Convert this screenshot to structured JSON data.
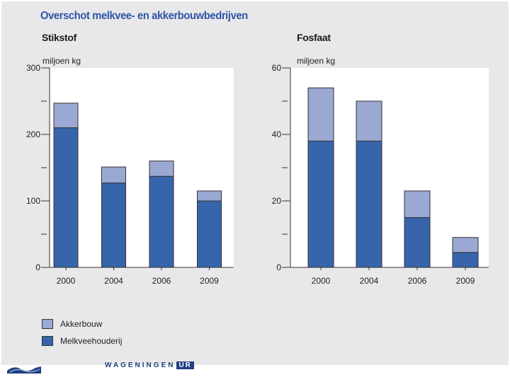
{
  "title": "Overschot melkvee- en akkerbouwbedrijven",
  "colors": {
    "akkerbouw": "#9aa8d3",
    "melkveehouderij": "#3765ab",
    "axis": "#333333",
    "plot_bg": "#ffffff",
    "title": "#2e56a6"
  },
  "legend": [
    {
      "key": "akkerbouw",
      "label": "Akkerbouw"
    },
    {
      "key": "melkveehouderij",
      "label": "Melkveehouderij"
    }
  ],
  "footer": {
    "wordmark": "WAGENINGEN",
    "wordmark_suffix": "UR",
    "logo_icon": "wageningen-logo-icon"
  },
  "chart_data": [
    {
      "type": "bar",
      "stacked": true,
      "title": "Stikstof",
      "ylabel": "miljoen kg",
      "xlabel": "",
      "categories": [
        "2000",
        "2004",
        "2006",
        "2009"
      ],
      "ylim": [
        0,
        300
      ],
      "y_labeled_ticks": [
        0,
        100,
        200,
        300
      ],
      "y_minor_ticks": [
        50,
        150,
        250
      ],
      "series": [
        {
          "name": "Melkveehouderij",
          "key": "melkveehouderij",
          "values": [
            210,
            127,
            137,
            100
          ]
        },
        {
          "name": "Akkerbouw",
          "key": "akkerbouw",
          "values": [
            37,
            24,
            23,
            15
          ]
        }
      ]
    },
    {
      "type": "bar",
      "stacked": true,
      "title": "Fosfaat",
      "ylabel": "miljoen kg",
      "xlabel": "",
      "categories": [
        "2000",
        "2004",
        "2006",
        "2009"
      ],
      "ylim": [
        0,
        60
      ],
      "y_labeled_ticks": [
        0,
        20,
        40,
        60
      ],
      "y_minor_ticks": [
        10,
        30,
        50
      ],
      "series": [
        {
          "name": "Melkveehouderij",
          "key": "melkveehouderij",
          "values": [
            38,
            38,
            15,
            4.5
          ]
        },
        {
          "name": "Akkerbouw",
          "key": "akkerbouw",
          "values": [
            16,
            12,
            8,
            4.5
          ]
        }
      ]
    }
  ]
}
